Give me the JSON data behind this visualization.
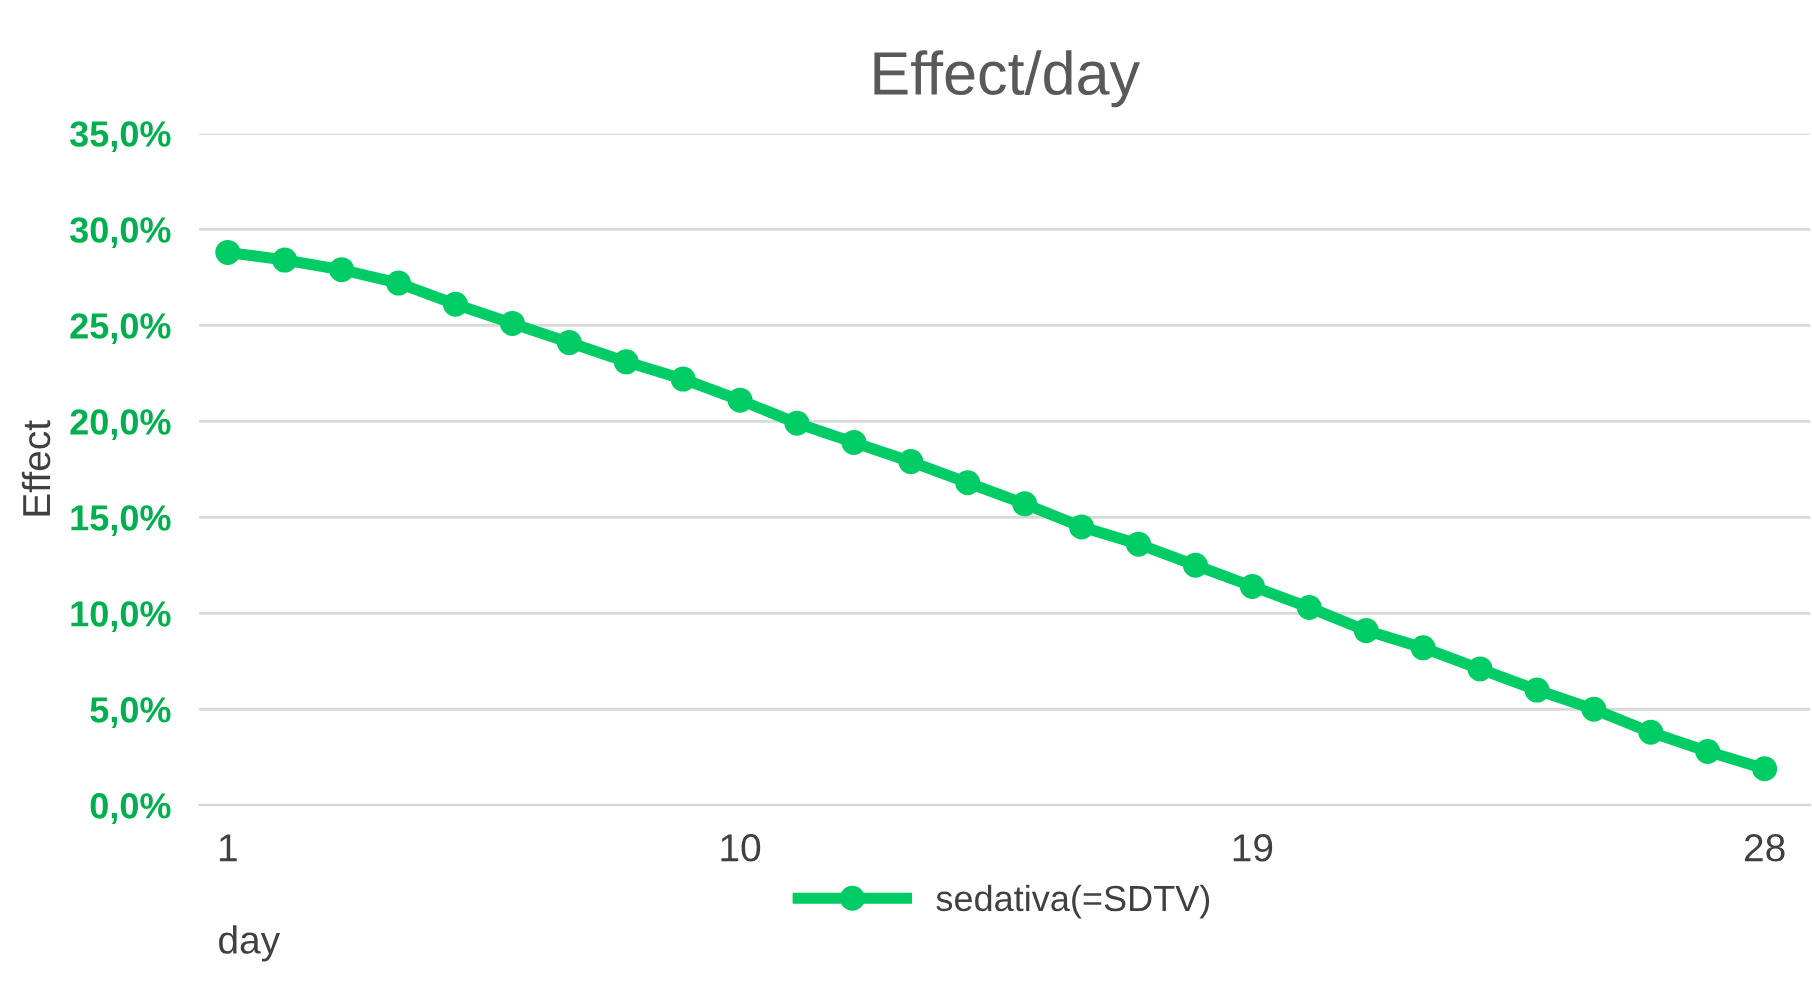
{
  "chart_data": {
    "type": "line",
    "title": "Effect/day",
    "xlabel": "day",
    "ylabel": "Effect",
    "x": [
      1,
      2,
      3,
      4,
      5,
      6,
      7,
      8,
      9,
      10,
      11,
      12,
      13,
      14,
      15,
      16,
      17,
      18,
      19,
      20,
      21,
      22,
      23,
      24,
      25,
      26,
      27,
      28
    ],
    "series": [
      {
        "name": "sedativa(=SDTV)",
        "color": "#00cc66",
        "values": [
          28.8,
          28.4,
          27.9,
          27.2,
          26.1,
          25.1,
          24.1,
          23.1,
          22.2,
          21.1,
          19.9,
          18.9,
          17.9,
          16.8,
          15.7,
          14.5,
          13.6,
          12.5,
          11.4,
          10.3,
          9.1,
          8.2,
          7.1,
          6.0,
          5.0,
          3.8,
          2.8,
          1.9
        ]
      }
    ],
    "xlim": [
      0.5,
      28.8
    ],
    "xticks": [
      1,
      10,
      19,
      28
    ],
    "ylim": [
      0,
      35
    ],
    "yticks": [
      {
        "value": 0,
        "label": "0,0%"
      },
      {
        "value": 5,
        "label": "5,0%"
      },
      {
        "value": 10,
        "label": "10,0%"
      },
      {
        "value": 15,
        "label": "15,0%"
      },
      {
        "value": 20,
        "label": "20,0%"
      },
      {
        "value": 25,
        "label": "25,0%"
      },
      {
        "value": 30,
        "label": "30,0%"
      },
      {
        "value": 35,
        "label": "35,0%"
      }
    ],
    "grid": "y",
    "legend": "bottom",
    "marker": "circle",
    "line_style": "solid"
  }
}
